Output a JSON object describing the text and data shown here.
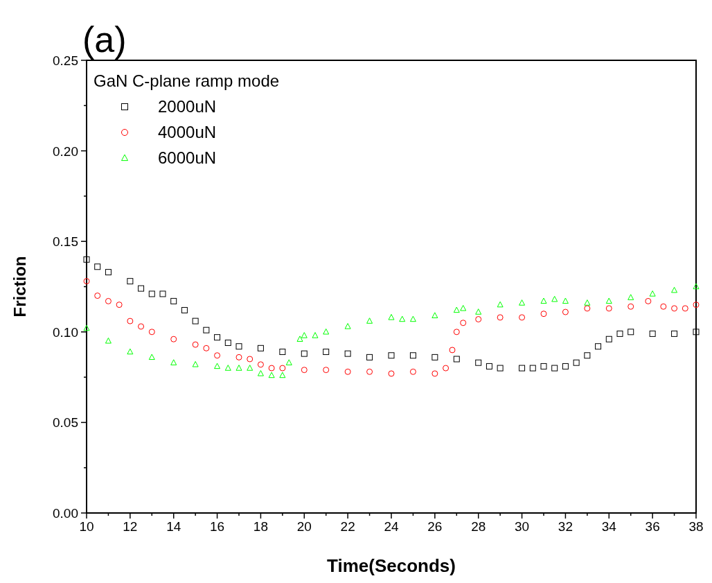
{
  "chart_data": {
    "type": "scatter",
    "title": "(a)",
    "xlabel": "Time(Seconds)",
    "ylabel": "Friction",
    "legend_title": "GaN C-plane ramp mode",
    "legend": "top left",
    "xlim": [
      10,
      38
    ],
    "xticks": [
      10,
      12,
      14,
      16,
      18,
      20,
      22,
      24,
      26,
      28,
      30,
      32,
      34,
      36,
      38
    ],
    "ylim": [
      0,
      0.25
    ],
    "yticks": [
      {
        "value": 0,
        "label": "0.00"
      },
      {
        "value": 0.05,
        "label": "0.05"
      },
      {
        "value": 0.1,
        "label": "0.10"
      },
      {
        "value": 0.15,
        "label": "0.15"
      },
      {
        "value": 0.2,
        "label": "0.20"
      },
      {
        "value": 0.25,
        "label": "0.25"
      }
    ],
    "series": [
      {
        "name": "2000uN",
        "color": "#000000",
        "marker": "square",
        "x": [
          10,
          10.5,
          11,
          12,
          12.5,
          13,
          13.5,
          14,
          14.5,
          15,
          15.5,
          16,
          16.5,
          17,
          18,
          19,
          20,
          21,
          22,
          23,
          24,
          25,
          26,
          27,
          28,
          28.5,
          29,
          30,
          30.5,
          31,
          31.5,
          32,
          32.5,
          33,
          33.5,
          34,
          34.5,
          35,
          36,
          37,
          38
        ],
        "values": [
          0.14,
          0.136,
          0.133,
          0.128,
          0.124,
          0.121,
          0.121,
          0.117,
          0.112,
          0.106,
          0.101,
          0.097,
          0.094,
          0.092,
          0.091,
          0.089,
          0.088,
          0.089,
          0.088,
          0.086,
          0.087,
          0.087,
          0.086,
          0.085,
          0.083,
          0.081,
          0.08,
          0.08,
          0.08,
          0.081,
          0.08,
          0.081,
          0.083,
          0.087,
          0.092,
          0.096,
          0.099,
          0.1,
          0.099,
          0.099,
          0.1
        ]
      },
      {
        "name": "4000uN",
        "color": "#ff0000",
        "marker": "circle",
        "x": [
          10,
          10.5,
          11,
          11.5,
          12,
          12.5,
          13,
          14,
          15,
          15.5,
          16,
          17,
          17.5,
          18,
          18.5,
          19,
          20,
          21,
          22,
          23,
          24,
          25,
          26,
          26.5,
          26.8,
          27,
          27.3,
          28,
          29,
          30,
          31,
          32,
          33,
          34,
          35,
          35.8,
          36.5,
          37,
          37.5,
          38
        ],
        "values": [
          0.128,
          0.12,
          0.117,
          0.115,
          0.106,
          0.103,
          0.1,
          0.096,
          0.093,
          0.091,
          0.087,
          0.086,
          0.085,
          0.082,
          0.08,
          0.08,
          0.079,
          0.079,
          0.078,
          0.078,
          0.077,
          0.078,
          0.077,
          0.08,
          0.09,
          0.1,
          0.105,
          0.107,
          0.108,
          0.108,
          0.11,
          0.111,
          0.113,
          0.113,
          0.114,
          0.117,
          0.114,
          0.113,
          0.113,
          0.115
        ]
      },
      {
        "name": "6000uN",
        "color": "#00ff00",
        "marker": "triangle",
        "x": [
          10,
          11,
          12,
          13,
          14,
          15,
          16,
          16.5,
          17,
          17.5,
          18,
          18.5,
          19,
          19.3,
          19.8,
          20,
          20.5,
          21,
          22,
          23,
          24,
          24.5,
          25,
          26,
          27,
          27.3,
          28,
          29,
          30,
          31,
          31.5,
          32,
          33,
          34,
          35,
          36,
          37,
          38
        ],
        "values": [
          0.102,
          0.095,
          0.089,
          0.086,
          0.083,
          0.082,
          0.081,
          0.08,
          0.08,
          0.08,
          0.077,
          0.076,
          0.076,
          0.083,
          0.096,
          0.098,
          0.098,
          0.1,
          0.103,
          0.106,
          0.108,
          0.107,
          0.107,
          0.109,
          0.112,
          0.113,
          0.111,
          0.115,
          0.116,
          0.117,
          0.118,
          0.117,
          0.116,
          0.117,
          0.119,
          0.121,
          0.123,
          0.125
        ]
      }
    ]
  }
}
